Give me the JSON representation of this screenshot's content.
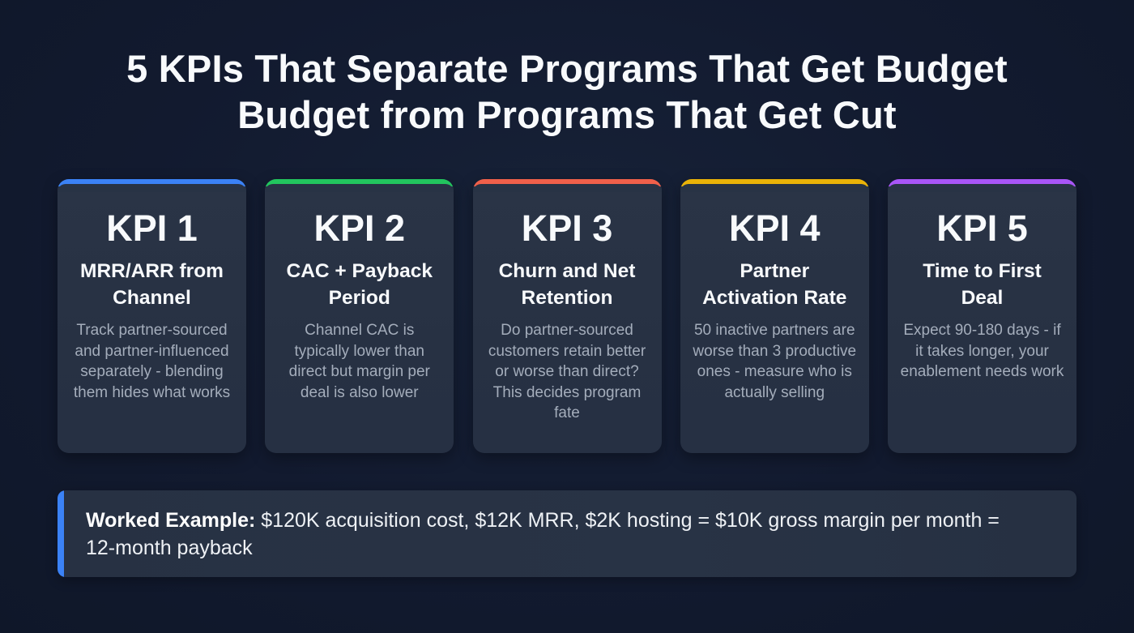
{
  "title": {
    "line1": "5 KPIs That Separate Programs That Get Budget",
    "line2": "Budget from Programs That Get Cut"
  },
  "cards": [
    {
      "kpi": "KPI 1",
      "subtitle": "MRR/ARR from Channel",
      "description": "Track partner-sourced and partner-influenced separately - blending them hides what works",
      "accent_color": "#3b82f6"
    },
    {
      "kpi": "KPI 2",
      "subtitle": "CAC + Payback Period",
      "description": "Channel CAC is typically lower than direct but margin per deal is also lower",
      "accent_color": "#22c55e"
    },
    {
      "kpi": "KPI 3",
      "subtitle": "Churn and Net Retention",
      "description": "Do partner-sourced customers retain better or worse than direct? This decides program fate",
      "accent_color": "#f0604a"
    },
    {
      "kpi": "KPI 4",
      "subtitle": "Partner Activation Rate",
      "description": "50 inactive partners are worse than 3 productive ones - measure who is actually selling",
      "accent_color": "#eab308"
    },
    {
      "kpi": "KPI 5",
      "subtitle": "Time to First Deal",
      "description": "Expect 90-180 days - if it takes longer, your enablement needs work",
      "accent_color": "#a855f7"
    }
  ],
  "worked_example": {
    "label": "Worked Example:",
    "text": " $120K acquisition cost, $12K MRR, $2K hosting = $10K gross margin per month = 12-month payback",
    "accent_color": "#3b82f6"
  },
  "colors": {
    "background": "#121a2f",
    "card_background": "#283345",
    "description_text": "#a4adbb"
  }
}
